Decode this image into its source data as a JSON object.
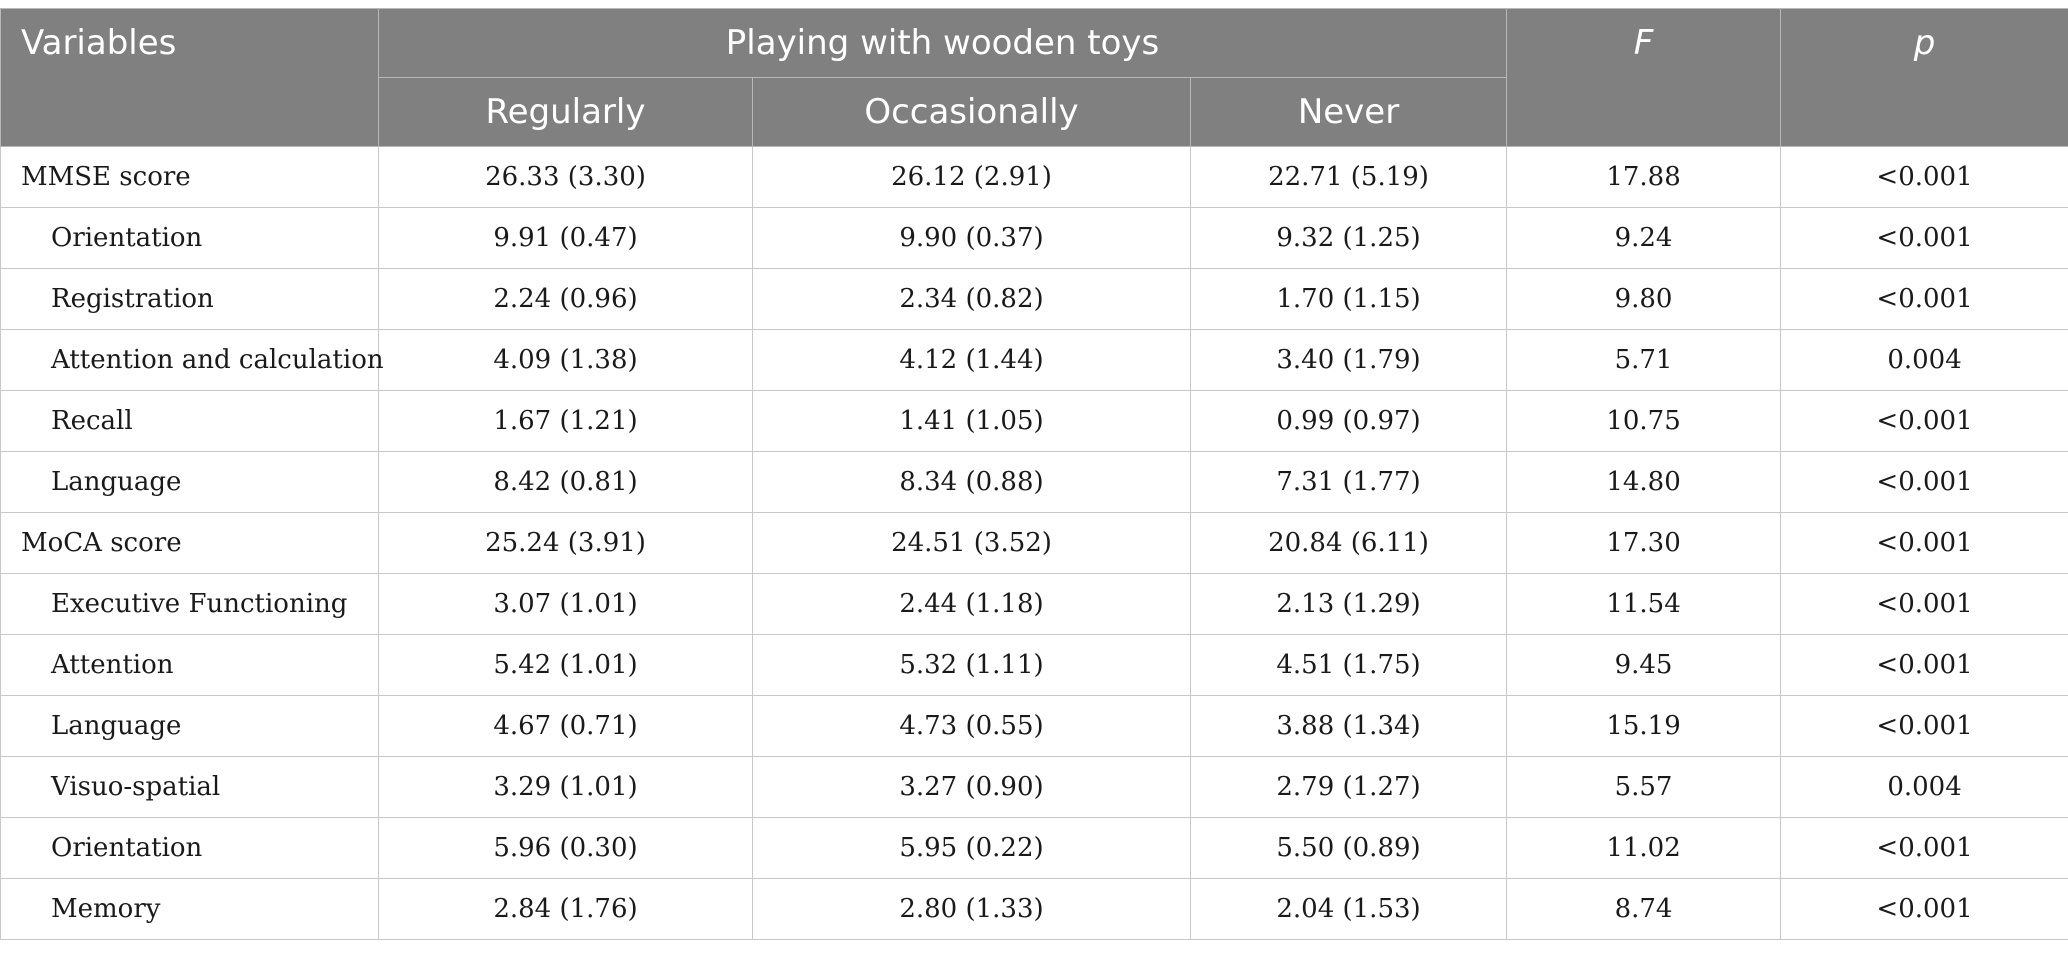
{
  "header": {
    "variables": "Variables",
    "group": "Playing with wooden toys",
    "regularly": "Regularly",
    "occasionally": "Occasionally",
    "never": "Never",
    "f": "F",
    "p": "p"
  },
  "rows": [
    {
      "variable": "MMSE score",
      "regularly": "26.33 (3.30)",
      "occasionally": "26.12 (2.91)",
      "never": "22.71 (5.19)",
      "f": "17.88",
      "p": "<0.001"
    },
    {
      "variable": "Orientation",
      "regularly": "9.91 (0.47)",
      "occasionally": "9.90 (0.37)",
      "never": "9.32 (1.25)",
      "f": "9.24",
      "p": "<0.001"
    },
    {
      "variable": "Registration",
      "regularly": "2.24 (0.96)",
      "occasionally": "2.34 (0.82)",
      "never": "1.70 (1.15)",
      "f": "9.80",
      "p": "<0.001"
    },
    {
      "variable": "Attention and calculation",
      "regularly": "4.09 (1.38)",
      "occasionally": "4.12 (1.44)",
      "never": "3.40 (1.79)",
      "f": "5.71",
      "p": "0.004"
    },
    {
      "variable": "Recall",
      "regularly": "1.67 (1.21)",
      "occasionally": "1.41 (1.05)",
      "never": "0.99 (0.97)",
      "f": "10.75",
      "p": "<0.001"
    },
    {
      "variable": "Language",
      "regularly": "8.42 (0.81)",
      "occasionally": "8.34 (0.88)",
      "never": "7.31 (1.77)",
      "f": "14.80",
      "p": "<0.001"
    },
    {
      "variable": "MoCA score",
      "regularly": "25.24 (3.91)",
      "occasionally": "24.51 (3.52)",
      "never": "20.84 (6.11)",
      "f": "17.30",
      "p": "<0.001"
    },
    {
      "variable": "Executive Functioning",
      "regularly": "3.07 (1.01)",
      "occasionally": "2.44 (1.18)",
      "never": "2.13 (1.29)",
      "f": "11.54",
      "p": "<0.001"
    },
    {
      "variable": "Attention",
      "regularly": "5.42 (1.01)",
      "occasionally": "5.32 (1.11)",
      "never": "4.51 (1.75)",
      "f": "9.45",
      "p": "<0.001"
    },
    {
      "variable": "Language",
      "regularly": "4.67 (0.71)",
      "occasionally": "4.73 (0.55)",
      "never": "3.88 (1.34)",
      "f": "15.19",
      "p": "<0.001"
    },
    {
      "variable": "Visuo-spatial",
      "regularly": "3.29 (1.01)",
      "occasionally": "3.27 (0.90)",
      "never": "2.79 (1.27)",
      "f": "5.57",
      "p": "0.004"
    },
    {
      "variable": "Orientation",
      "regularly": "5.96 (0.30)",
      "occasionally": "5.95 (0.22)",
      "never": "5.50 (0.89)",
      "f": "11.02",
      "p": "<0.001"
    },
    {
      "variable": "Memory",
      "regularly": "2.84 (1.76)",
      "occasionally": "2.80 (1.33)",
      "never": "2.04 (1.53)",
      "f": "8.74",
      "p": "<0.001"
    }
  ]
}
